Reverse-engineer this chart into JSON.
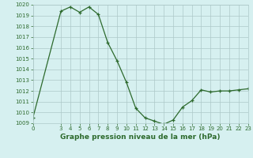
{
  "x": [
    0,
    3,
    4,
    5,
    6,
    7,
    8,
    9,
    10,
    11,
    12,
    13,
    14,
    15,
    16,
    17,
    18,
    19,
    20,
    21,
    22,
    23
  ],
  "y": [
    1009.5,
    1019.4,
    1019.8,
    1019.3,
    1019.8,
    1019.1,
    1016.5,
    1014.8,
    1012.8,
    1010.4,
    1009.5,
    1009.2,
    1008.9,
    1009.3,
    1010.5,
    1011.1,
    1012.1,
    1011.9,
    1012.0,
    1012.0,
    1012.1,
    1012.2
  ],
  "xlabel": "Graphe pression niveau de la mer (hPa)",
  "ylim": [
    1009,
    1020
  ],
  "xlim": [
    0,
    23
  ],
  "yticks": [
    1009,
    1010,
    1011,
    1012,
    1013,
    1014,
    1015,
    1016,
    1017,
    1018,
    1019,
    1020
  ],
  "xticks": [
    0,
    3,
    4,
    5,
    6,
    7,
    8,
    9,
    10,
    11,
    12,
    13,
    14,
    15,
    16,
    17,
    18,
    19,
    20,
    21,
    22,
    23
  ],
  "line_color": "#2d6a2d",
  "marker_color": "#2d6a2d",
  "bg_color": "#d6f0f0",
  "grid_color": "#adc8c8",
  "text_color": "#2d6a2d",
  "xlabel_fontsize": 6.5,
  "tick_fontsize": 5.0,
  "linewidth": 0.9,
  "markersize": 3.5,
  "markeredgewidth": 0.9
}
